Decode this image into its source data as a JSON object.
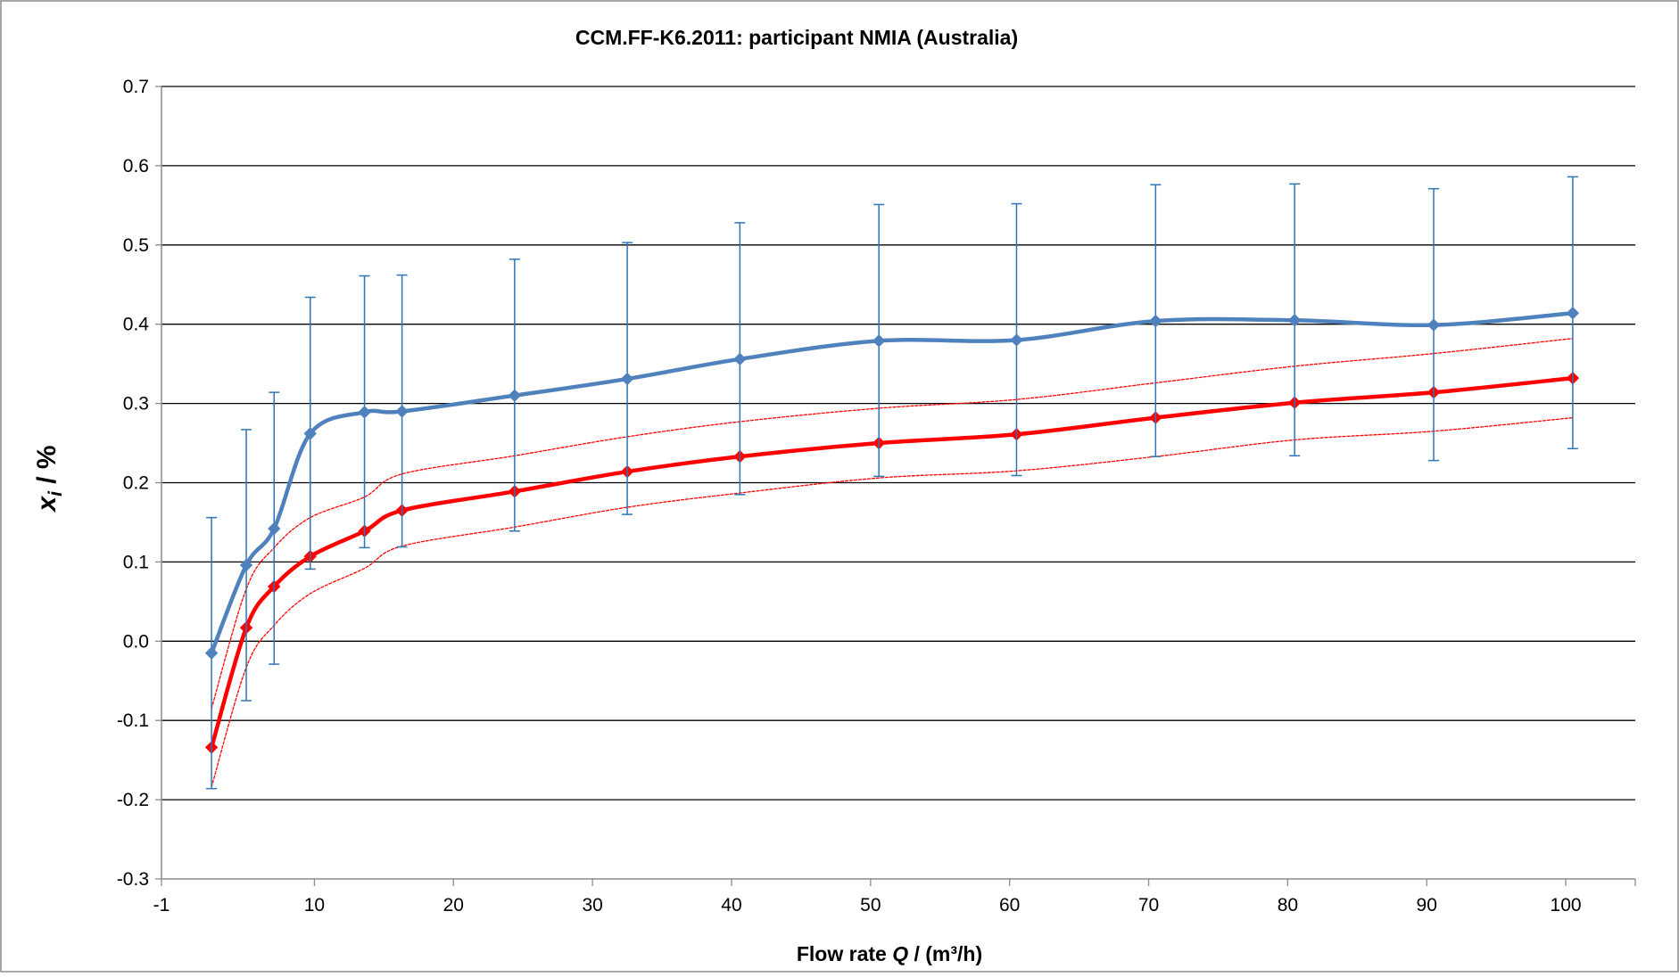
{
  "chart_data": {
    "type": "line",
    "title": "CCM.FF-K6.2011: participant NMIA (Australia)",
    "xlabel": {
      "prefix": "Flow rate ",
      "symbol": "Q",
      "suffix": " / (m³/h)"
    },
    "ylabel": {
      "symbol": "x",
      "subscript": "i",
      "suffix": " / %"
    },
    "xlim": [
      -1,
      105
    ],
    "ylim": [
      -0.3,
      0.7
    ],
    "xticks": [
      -1,
      10,
      20,
      30,
      40,
      50,
      60,
      70,
      80,
      90,
      100
    ],
    "xtick_labels": [
      "-1",
      "10",
      "20",
      "30",
      "40",
      "50",
      "60",
      "70",
      "80",
      "90",
      "100"
    ],
    "yticks": [
      -0.3,
      -0.2,
      -0.1,
      0.0,
      0.1,
      0.2,
      0.3,
      0.4,
      0.5,
      0.6,
      0.7
    ],
    "ytick_labels": [
      "-0.3",
      "-0.2",
      "-0.1",
      "0.0",
      "0.1",
      "0.2",
      "0.3",
      "0.4",
      "0.5",
      "0.6",
      "0.7"
    ],
    "grid": "horizontal-major",
    "legend": "none",
    "x": [
      2.6,
      5.1,
      7.1,
      9.7,
      13.6,
      16.3,
      24.4,
      32.5,
      40.6,
      50.6,
      60.5,
      70.5,
      80.5,
      90.5,
      100.5
    ],
    "series": [
      {
        "color": "#4F81BD",
        "style": "solid-smooth",
        "marker": "diamond",
        "values": [
          -0.015,
          0.096,
          0.142,
          0.262,
          0.289,
          0.29,
          0.31,
          0.331,
          0.356,
          0.379,
          0.38,
          0.404,
          0.405,
          0.399,
          0.414
        ],
        "error_plus": [
          0.171,
          0.171,
          0.172,
          0.172,
          0.172,
          0.172,
          0.172,
          0.172,
          0.172,
          0.172,
          0.172,
          0.172,
          0.172,
          0.172,
          0.172
        ],
        "error_minus": [
          0.171,
          0.171,
          0.171,
          0.171,
          0.171,
          0.171,
          0.171,
          0.171,
          0.171,
          0.171,
          0.171,
          0.171,
          0.171,
          0.171,
          0.171
        ],
        "error_color": "#2E75B6"
      },
      {
        "color": "#FF0000",
        "style": "solid-smooth-thick",
        "marker": "diamond",
        "values": [
          -0.134,
          0.017,
          0.069,
          0.107,
          0.139,
          0.165,
          0.189,
          0.214,
          0.233,
          0.25,
          0.261,
          0.282,
          0.301,
          0.314,
          0.332
        ]
      },
      {
        "color": "#FF0000",
        "style": "dotted-thin",
        "marker": "none",
        "values": [
          -0.085,
          0.066,
          0.118,
          0.156,
          0.182,
          0.211,
          0.234,
          0.258,
          0.277,
          0.294,
          0.305,
          0.326,
          0.347,
          0.363,
          0.382
        ]
      },
      {
        "color": "#FF0000",
        "style": "dotted-thin",
        "marker": "none",
        "values": [
          -0.184,
          -0.033,
          0.02,
          0.06,
          0.092,
          0.12,
          0.144,
          0.169,
          0.187,
          0.206,
          0.215,
          0.233,
          0.254,
          0.265,
          0.282
        ]
      }
    ]
  }
}
